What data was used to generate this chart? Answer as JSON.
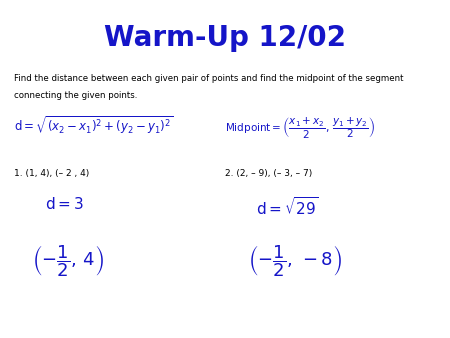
{
  "title": "Warm-Up 12/02",
  "title_color": "#1515c8",
  "title_fontsize": 20,
  "bg_color": "#ffffff",
  "blue": "#1515c8",
  "black": "#000000",
  "instruction_line1": "Find the distance between each given pair of points and find the midpoint of the segment",
  "instruction_line2": "connecting the given points.",
  "formula_distance": "$\\mathrm{d} = \\sqrt{(x_2 - x_1)^2 + (y_2 - y_1)^2}$",
  "formula_midpoint": "$\\mathrm{Midpoint} = \\left(\\dfrac{x_1+x_2}{2},\\,\\dfrac{y_1+y_2}{2}\\right)$",
  "prob1_label": "1. (1, 4), (– 2 , 4)",
  "prob2_label": "2. (2, – 9), (– 3, – 7)",
  "prob1_distance": "$\\mathrm{d} = 3$",
  "prob2_distance": "$\\mathrm{d} = \\sqrt{29}$",
  "prob1_midpoint": "$\\left(-\\dfrac{1}{2},\\,4\\right)$",
  "prob2_midpoint": "$\\left(-\\dfrac{1}{2},\\,-8\\right)$"
}
